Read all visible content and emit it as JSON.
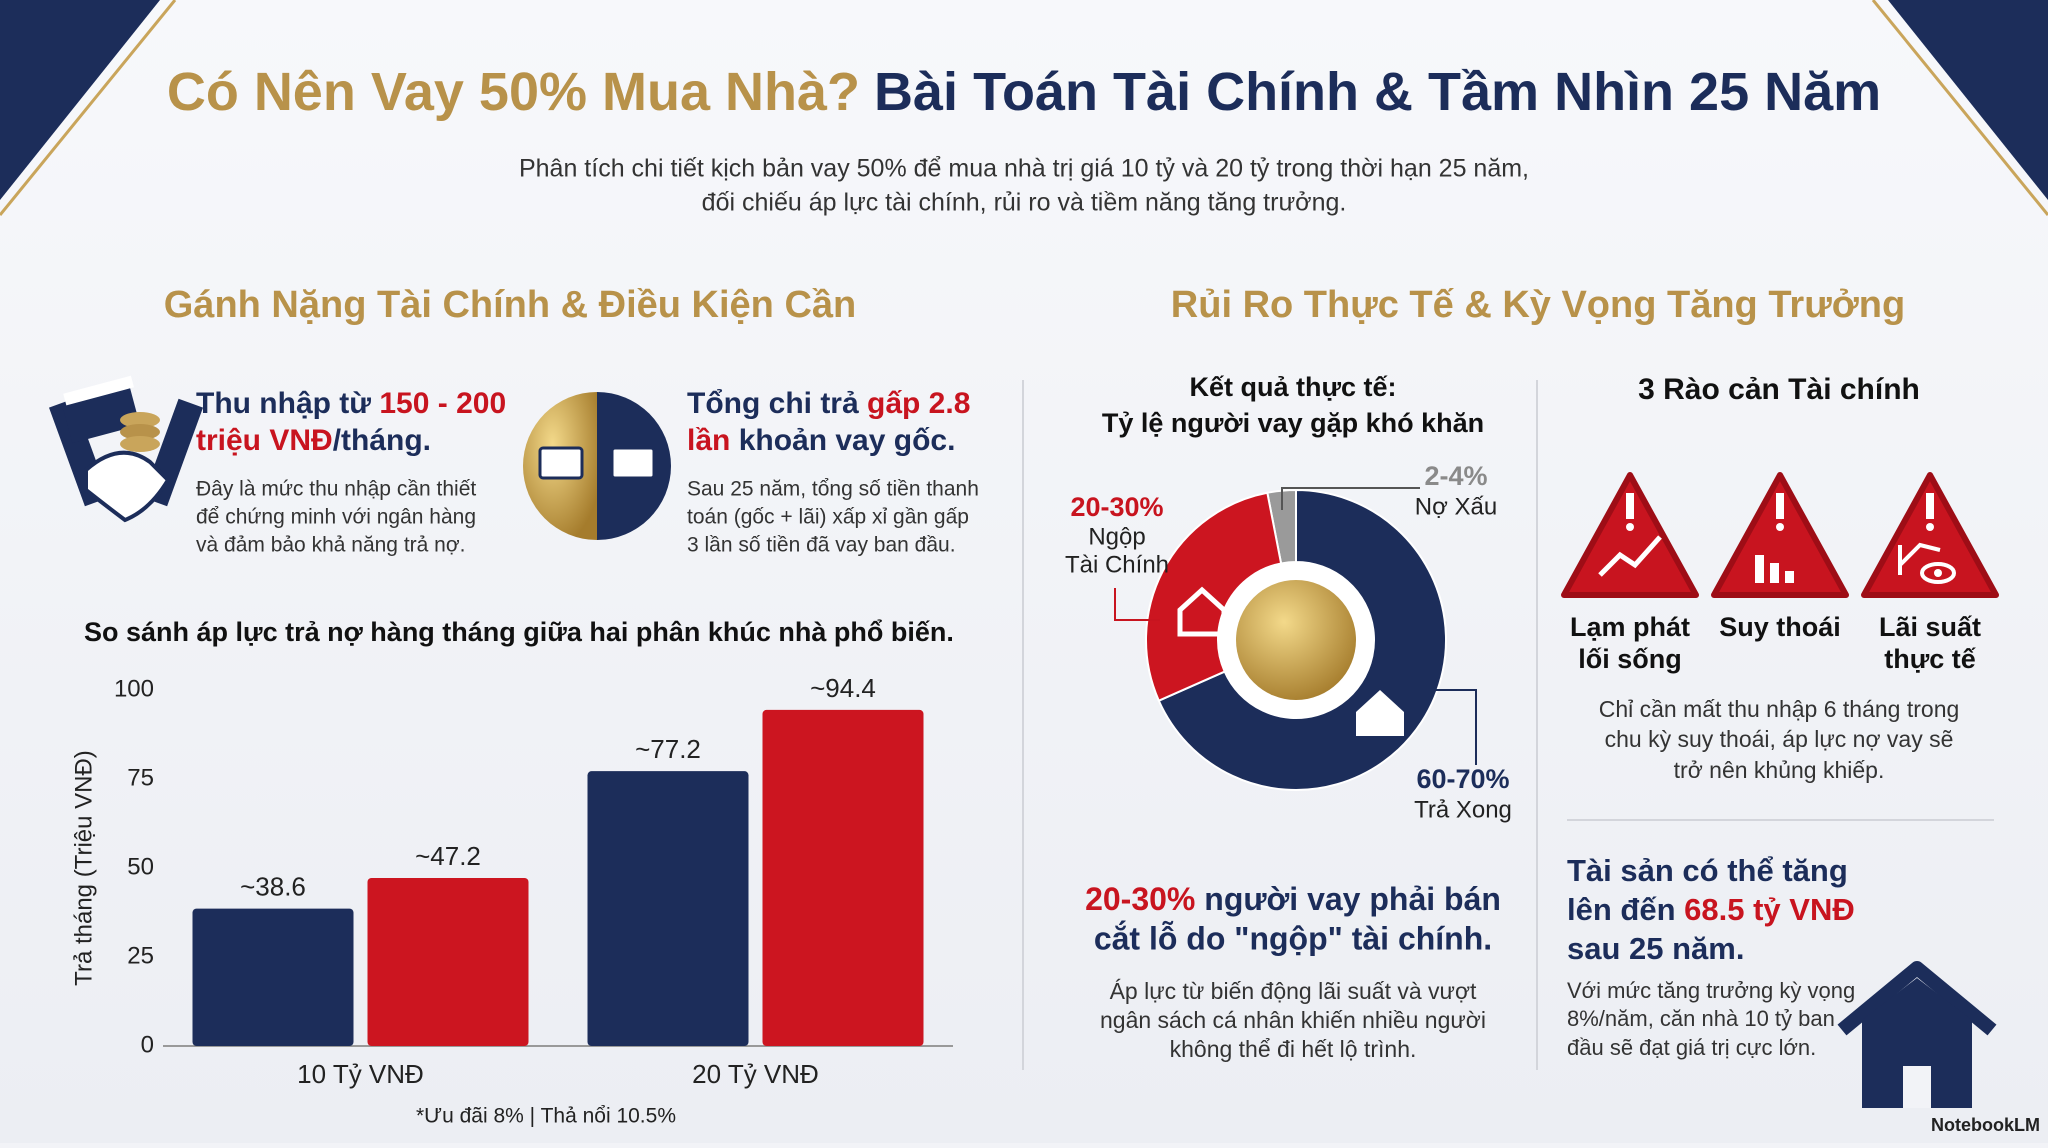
{
  "header": {
    "title_part1": "Có Nên Vay 50% Mua Nhà?",
    "title_part2": "Bài Toán Tài Chính & Tầm Nhìn 25 Năm",
    "subtitle": [
      "Phân tích chi tiết kịch bản vay 50% để mua nhà trị giá 10 tỷ và 20 tỷ trong thời hạn 25 năm,",
      "đối chiếu áp lực tài chính, rủi ro và tiềm năng tăng trưởng."
    ]
  },
  "left": {
    "heading": "Gánh Nặng Tài Chính & Điều Kiện Cần",
    "cards": [
      {
        "title": [
          [
            "Thu nhập từ ",
            "150 - 200"
          ],
          [
            "triệu VNĐ",
            "/tháng."
          ]
        ],
        "text": [
          "Đây là mức thu nhập cần thiết",
          "để chứng minh với ngân hàng",
          "và đảm bảo khả năng trả nợ."
        ]
      },
      {
        "title": [
          [
            "Tổng chi trả ",
            "gấp 2.8"
          ],
          [
            "lần",
            " khoản vay gốc."
          ]
        ],
        "text": [
          "Sau 25 năm, tổng số tiền thanh",
          "toán (gốc + lãi) xấp xỉ gần gấp",
          "3 lần số tiền đã vay ban đầu."
        ]
      }
    ]
  },
  "right": {
    "heading": "Rủi Ro Thực Tế & Kỳ Vọng Tăng Trưởng",
    "callout": [
      [
        "20-30%",
        " người vay phải bán"
      ],
      [
        "cắt lỗ do \"ngộp\" tài chính."
      ]
    ],
    "callout_text": [
      "Áp lực từ biến động lãi suất và vượt",
      "ngân sách cá nhân khiến nhiều người",
      "không thể đi hết lộ trình."
    ],
    "barriers": {
      "title": "3 Rào cản Tài chính",
      "items": [
        [
          "Lạm phát",
          "lối sống"
        ],
        [
          "Suy thoái"
        ],
        [
          "Lãi suất",
          "thực tế"
        ]
      ],
      "text": [
        "Chỉ cần mất thu nhập 6 tháng trong",
        "chu kỳ suy thoái, áp lực nợ vay sẽ",
        "trở nên khủng khiếp."
      ]
    },
    "growth": {
      "title": [
        [
          "Tài sản có thể tăng"
        ],
        [
          "lên đến ",
          "68.5 tỷ VNĐ"
        ],
        [
          "sau 25 năm."
        ]
      ],
      "text": [
        "Với mức tăng trưởng kỳ vọng",
        "8%/năm, căn nhà 10 tỷ ban",
        "đầu sẽ đạt giá trị cực lớn."
      ]
    }
  },
  "footer": {
    "brand": "NotebookLM"
  },
  "chart_data": [
    {
      "type": "bar",
      "title": "So sánh áp lực trả nợ hàng tháng giữa hai phân khúc nhà phổ biến.",
      "y_label": "Trả tháng (Triệu VNĐ)",
      "note": "*Ưu đãi 8% | Thả nổi 10.5%",
      "categories": [
        "10 Tỷ VNĐ",
        "20 Tỷ VNĐ"
      ],
      "series": [
        {
          "color": "#1c2d5a",
          "values": [
            38.6,
            77.2
          ],
          "value_labels": [
            "~38.6",
            "~77.2"
          ]
        },
        {
          "color": "#cc1520",
          "values": [
            47.2,
            94.4
          ],
          "value_labels": [
            "~47.2",
            "~94.4"
          ]
        }
      ],
      "ylim": [
        0,
        100
      ],
      "yticks": [
        0,
        25,
        50,
        75,
        100
      ],
      "grid": false
    },
    {
      "type": "pie",
      "title": [
        "Kết quả thực tế:",
        "Tỷ lệ người vay gặp khó khăn"
      ],
      "categories": [
        [
          "Nợ Xấu"
        ],
        [
          "Trả Xong"
        ],
        [
          "Ngộp",
          "Tài Chính"
        ]
      ],
      "values": [
        3,
        67,
        28
      ],
      "value_labels": [
        "2-4%",
        "60-70%",
        "20-30%"
      ],
      "colors": [
        "#9a9a9a",
        "#1c2d5a",
        "#cc1520"
      ]
    }
  ]
}
